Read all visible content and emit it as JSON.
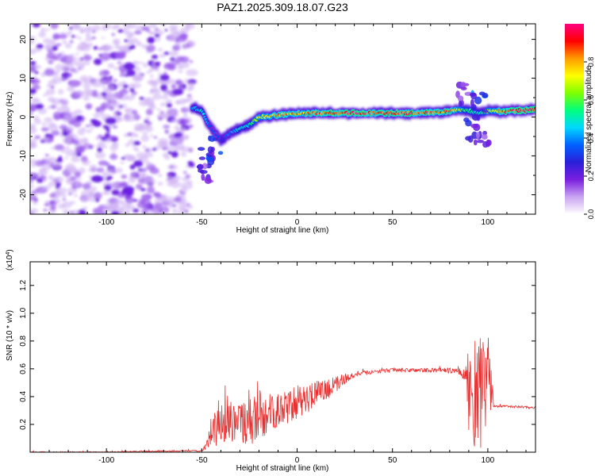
{
  "title": "PAZ1.2025.309.18.07.G23",
  "chart_data": [
    {
      "type": "heatmap",
      "title": "PAZ1.2025.309.18.07.G23",
      "xlabel": "Height of straight line (km)",
      "ylabel": "Frequency (Hz)",
      "xlim": [
        -140,
        125
      ],
      "ylim": [
        -25,
        24
      ],
      "xticks": [
        -100,
        -50,
        0,
        50,
        100
      ],
      "xtick_labels": [
        "-100",
        "-50",
        "0",
        "50",
        "100"
      ],
      "yticks": [
        -20,
        -10,
        0,
        10,
        20
      ],
      "ytick_labels": [
        "-20",
        "-10",
        "0",
        "10",
        "20"
      ],
      "colorbar": {
        "label": "Normalized spectral amplitude",
        "range": [
          0,
          1
        ],
        "ticks": [
          0,
          0.2,
          0.4,
          0.6,
          0.8
        ],
        "tick_labels": [
          "0.0",
          "0.2",
          "0.4",
          "0.6",
          "0.8"
        ],
        "colors": [
          "#ffffff",
          "#c9a4f2",
          "#7b1fe0",
          "#2b1fd8",
          "#0060ff",
          "#00d7ff",
          "#00ff7f",
          "#7fff00",
          "#ffff00",
          "#ff9a00",
          "#ff0000",
          "#ff0080"
        ]
      },
      "features": {
        "noise_region_x": [
          -140,
          -55
        ],
        "noise_amplitude": 0.1,
        "signal_track": {
          "x": [
            -55,
            -50,
            -45,
            -40,
            -35,
            -30,
            -25,
            -20,
            -10,
            0,
            10,
            20,
            30,
            40,
            50,
            60,
            70,
            80,
            88,
            95,
            100,
            110,
            125
          ],
          "freq_hz": [
            2.5,
            1.5,
            -3,
            -6,
            -4,
            -3,
            -2,
            0,
            0.5,
            1,
            1,
            1,
            1,
            1,
            1,
            1,
            1.2,
            1.5,
            2,
            1,
            1.5,
            1.5,
            2
          ],
          "amplitude": [
            0.45,
            0.5,
            0.35,
            0.35,
            0.4,
            0.5,
            0.55,
            0.75,
            0.85,
            0.85,
            0.9,
            0.95,
            0.95,
            0.95,
            0.95,
            0.95,
            0.9,
            0.9,
            0.6,
            0.5,
            0.7,
            0.95,
            0.95
          ]
        },
        "scatter_blobs": [
          {
            "x": -47,
            "freq_hz": -10,
            "amplitude": 0.3
          },
          {
            "x": -48,
            "freq_hz": -14,
            "amplitude": 0.2
          },
          {
            "x": -42,
            "freq_hz": -8,
            "amplitude": 0.3
          },
          {
            "x": 88,
            "freq_hz": 6,
            "amplitude": 0.2
          },
          {
            "x": 92,
            "freq_hz": -3,
            "amplitude": 0.25
          },
          {
            "x": 95,
            "freq_hz": 4,
            "amplitude": 0.35
          },
          {
            "x": 97,
            "freq_hz": -5,
            "amplitude": 0.2
          }
        ]
      }
    },
    {
      "type": "line",
      "title": "",
      "xlabel": "Height of straight line (km)",
      "ylabel": "SNR (10 * v/v)",
      "y_multiplier": "(x10^4)",
      "xlim": [
        -140,
        125
      ],
      "ylim": [
        0,
        1.37
      ],
      "xticks": [
        -100,
        -50,
        0,
        50,
        100
      ],
      "xtick_labels": [
        "-100",
        "-50",
        "0",
        "50",
        "100"
      ],
      "yticks": [
        0.2,
        0.4,
        0.6,
        0.8,
        1.0,
        1.2
      ],
      "ytick_labels": [
        "0.2",
        "0.4",
        "0.6",
        "0.8",
        "1.0",
        "1.2"
      ],
      "color": "#e83030",
      "series": [
        {
          "name": "SNR envelope",
          "x": [
            -140,
            -100,
            -60,
            -50,
            -48,
            -45,
            -42,
            -40,
            -35,
            -30,
            -25,
            -20,
            -15,
            -10,
            -5,
            0,
            10,
            20,
            25,
            30,
            40,
            50,
            60,
            70,
            80,
            85,
            88,
            90,
            95,
            100,
            102,
            103,
            105,
            110,
            125
          ],
          "mean": [
            0.0,
            0.0,
            0.01,
            0.01,
            0.04,
            0.1,
            0.22,
            0.22,
            0.25,
            0.22,
            0.22,
            0.25,
            0.28,
            0.3,
            0.32,
            0.36,
            0.42,
            0.48,
            0.53,
            0.56,
            0.58,
            0.59,
            0.59,
            0.59,
            0.59,
            0.58,
            0.55,
            0.45,
            0.4,
            0.45,
            0.45,
            0.33,
            0.33,
            0.33,
            0.32
          ],
          "noise": [
            0.005,
            0.005,
            0.005,
            0.005,
            0.02,
            0.08,
            0.18,
            0.16,
            0.18,
            0.15,
            0.18,
            0.18,
            0.14,
            0.14,
            0.12,
            0.12,
            0.1,
            0.06,
            0.04,
            0.02,
            0.015,
            0.015,
            0.015,
            0.015,
            0.02,
            0.02,
            0.06,
            0.3,
            0.45,
            0.3,
            0.2,
            0.01,
            0.008,
            0.008,
            0.008
          ]
        }
      ]
    }
  ]
}
